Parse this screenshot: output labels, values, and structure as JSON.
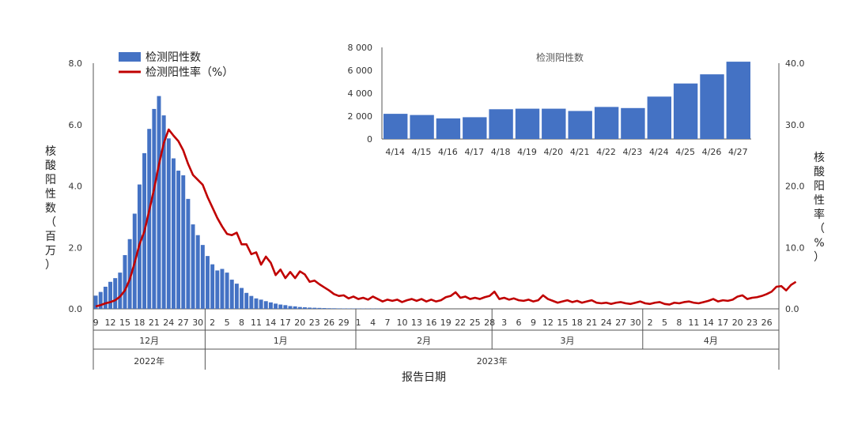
{
  "colors": {
    "bar": "#4472C4",
    "line": "#C00000",
    "axis": "#555555"
  },
  "chart_data": [
    {
      "type": "bar+line",
      "legend": {
        "placement": "top-left",
        "bar_label": "检测阳性数",
        "line_label": "检测阳性率（%）"
      },
      "ylabel_left": "核酸阳性数（百万）",
      "ylabel_right": "核酸阳性率（%）",
      "xlabel": "报告日期",
      "ylim_left": [
        0,
        8
      ],
      "ylim_right": [
        0,
        40
      ],
      "yticks_left": [
        "0.0",
        "2.0",
        "4.0",
        "6.0",
        "8.0"
      ],
      "yticks_right": [
        "0.0",
        "10.0",
        "20.0",
        "30.0",
        "40.0"
      ],
      "month_labels": [
        "12月",
        "1月",
        "2月",
        "3月",
        "4月"
      ],
      "year_labels": [
        "2022年",
        "2023年"
      ],
      "day_ticks": {
        "dec": [
          "9",
          "12",
          "15",
          "18",
          "21",
          "24",
          "27",
          "30"
        ],
        "jan": [
          "2",
          "5",
          "8",
          "11",
          "14",
          "17",
          "20",
          "23",
          "26",
          "29"
        ],
        "feb": [
          "1",
          "4",
          "7",
          "10",
          "13",
          "16",
          "19",
          "22",
          "25",
          "28"
        ],
        "mar": [
          "3",
          "6",
          "9",
          "12",
          "15",
          "18",
          "21",
          "24",
          "27",
          "30"
        ],
        "apr": [
          "2",
          "5",
          "8",
          "11",
          "14",
          "17",
          "20",
          "23",
          "26"
        ]
      },
      "bars_start_date": "12/9",
      "bars": [
        0.43,
        0.55,
        0.72,
        0.88,
        1.0,
        1.18,
        1.75,
        2.27,
        3.1,
        4.05,
        5.07,
        5.86,
        6.51,
        6.93,
        6.3,
        5.55,
        4.9,
        4.5,
        4.35,
        3.58,
        2.75,
        2.4,
        2.08,
        1.72,
        1.45,
        1.25,
        1.3,
        1.18,
        0.95,
        0.82,
        0.68,
        0.52,
        0.42,
        0.34,
        0.3,
        0.25,
        0.21,
        0.17,
        0.14,
        0.12,
        0.09,
        0.08,
        0.06,
        0.05,
        0.04,
        0.035,
        0.03,
        0.025,
        0.02,
        0.018,
        0.015,
        0.013,
        0.012,
        0.011,
        0.01,
        0.01,
        0.009,
        0.009,
        0.008,
        0.008,
        0.007,
        0.007,
        0.006,
        0.006,
        0.006,
        0.005,
        0.005,
        0.005,
        0.005,
        0.005,
        0.004,
        0.004,
        0.004,
        0.004,
        0.004,
        0.004,
        0.004,
        0.004,
        0.004,
        0.004,
        0.004,
        0.004,
        0.004,
        0.004,
        0.004,
        0.004,
        0.004,
        0.004,
        0.004,
        0.004,
        0.004,
        0.004,
        0.004,
        0.004,
        0.004,
        0.004,
        0.004,
        0.004,
        0.004,
        0.004,
        0.004,
        0.004,
        0.004,
        0.004,
        0.004,
        0.004,
        0.004,
        0.004,
        0.004,
        0.004,
        0.004,
        0.004,
        0.004,
        0.004,
        0.004,
        0.004,
        0.004,
        0.004,
        0.004,
        0.004,
        0.004,
        0.004,
        0.004,
        0.004,
        0.004,
        0.004,
        0.004,
        0.004,
        0.004,
        0.004,
        0.004,
        0.004,
        0.004,
        0.004,
        0.004,
        0.004,
        0.004,
        0.004,
        0.004,
        0.004,
        0.004
      ],
      "line": [
        0.4,
        0.6,
        0.9,
        1.1,
        1.4,
        2.0,
        3.0,
        4.8,
        7.5,
        10.5,
        12.6,
        16.0,
        19.5,
        23.5,
        27.0,
        29.2,
        28.2,
        27.3,
        25.8,
        23.6,
        21.8,
        21.0,
        20.2,
        18.2,
        16.5,
        14.8,
        13.4,
        12.2,
        12.0,
        12.4,
        10.5,
        10.5,
        8.9,
        9.2,
        7.2,
        8.5,
        7.5,
        5.5,
        6.4,
        5.0,
        6.0,
        5.0,
        6.1,
        5.6,
        4.4,
        4.6,
        4.0,
        3.5,
        3.0,
        2.4,
        2.1,
        2.2,
        1.7,
        2.0,
        1.6,
        1.8,
        1.5,
        2.0,
        1.6,
        1.2,
        1.5,
        1.3,
        1.5,
        1.1,
        1.4,
        1.6,
        1.3,
        1.6,
        1.2,
        1.5,
        1.2,
        1.4,
        1.9,
        2.1,
        2.7,
        1.8,
        2.0,
        1.6,
        1.8,
        1.6,
        1.9,
        2.1,
        2.8,
        1.6,
        1.8,
        1.5,
        1.7,
        1.4,
        1.3,
        1.5,
        1.2,
        1.4,
        2.2,
        1.6,
        1.3,
        1.0,
        1.2,
        1.4,
        1.1,
        1.3,
        1.0,
        1.2,
        1.4,
        1.0,
        0.9,
        1.0,
        0.8,
        1.0,
        1.1,
        0.9,
        0.8,
        1.0,
        1.2,
        0.9,
        0.8,
        1.0,
        1.1,
        0.8,
        0.7,
        1.0,
        0.9,
        1.1,
        1.2,
        1.0,
        0.9,
        1.1,
        1.3,
        1.6,
        1.2,
        1.4,
        1.3,
        1.5,
        2.0,
        2.2,
        1.6,
        1.8,
        1.9,
        2.1,
        2.4,
        2.8,
        3.6,
        3.7,
        3.0,
        3.9,
        4.4
      ]
    },
    {
      "type": "bar",
      "title": "检测阳性数",
      "categories": [
        "4/14",
        "4/15",
        "4/16",
        "4/17",
        "4/18",
        "4/19",
        "4/20",
        "4/21",
        "4/22",
        "4/23",
        "4/24",
        "4/25",
        "4/26",
        "4/27"
      ],
      "values": [
        2200,
        2100,
        1800,
        1900,
        2600,
        2650,
        2650,
        2450,
        2800,
        2700,
        3700,
        4850,
        5650,
        6750
      ],
      "ylim": [
        0,
        8000
      ],
      "yticks": [
        "0",
        "2 000",
        "4 000",
        "6 000",
        "8 000"
      ]
    }
  ]
}
